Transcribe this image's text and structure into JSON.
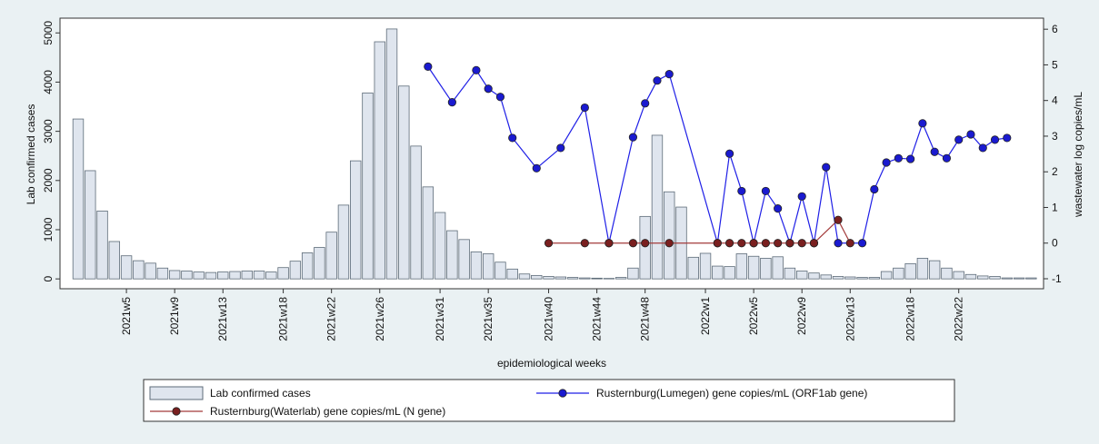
{
  "chart_data": {
    "type": "bar",
    "x_label": "epidemiological weeks",
    "y_label": "Lab confirmed cases",
    "y2_label": "wastewater log copies/mL",
    "categories": [
      null,
      null,
      null,
      null,
      "2021w5",
      null,
      null,
      null,
      "2021w9",
      null,
      null,
      null,
      "2021w13",
      null,
      null,
      null,
      null,
      "2021w18",
      null,
      null,
      null,
      "2021w22",
      null,
      null,
      null,
      "2021w26",
      null,
      null,
      null,
      null,
      "2021w31",
      null,
      null,
      null,
      "2021w35",
      null,
      null,
      null,
      null,
      "2021w40",
      null,
      null,
      null,
      "2021w44",
      null,
      null,
      null,
      "2021w48",
      null,
      null,
      null,
      null,
      "2022w1",
      null,
      null,
      null,
      "2022w5",
      null,
      null,
      null,
      "2022w9",
      null,
      null,
      null,
      "2022w13",
      null,
      null,
      null,
      null,
      "2022w18",
      null,
      null,
      null,
      "2022w22",
      null,
      null,
      null,
      null,
      null,
      null
    ],
    "ylim": [
      -200,
      5300
    ],
    "yticks": [
      0,
      1000,
      2000,
      3000,
      4000,
      5000
    ],
    "y2lim": [
      -1.28,
      6.31
    ],
    "y2ticks": [
      -1,
      0,
      1,
      2,
      3,
      4,
      5,
      6
    ],
    "series": [
      {
        "name": "Lab confirmed cases",
        "type": "bar",
        "color": "#dfe5ee",
        "axis": "y",
        "values": [
          3250,
          2200,
          1380,
          760,
          470,
          370,
          320,
          220,
          170,
          160,
          140,
          130,
          140,
          150,
          160,
          160,
          140,
          230,
          360,
          530,
          640,
          950,
          1500,
          2400,
          3780,
          4820,
          5080,
          3920,
          2700,
          1870,
          1350,
          980,
          800,
          550,
          510,
          340,
          200,
          100,
          70,
          50,
          40,
          30,
          20,
          15,
          10,
          30,
          220,
          1270,
          2920,
          1770,
          1460,
          440,
          520,
          260,
          250,
          510,
          460,
          420,
          450,
          220,
          160,
          120,
          80,
          50,
          40,
          30,
          30,
          150,
          220,
          310,
          420,
          370,
          220,
          150,
          90,
          60,
          50,
          20,
          20,
          20
        ]
      },
      {
        "name": "Rusternburg(Lumegen) gene copies/mL (ORF1ab gene)",
        "type": "line",
        "color": "#1f1fe6",
        "axis": "y2",
        "values": [
          null,
          null,
          null,
          null,
          null,
          null,
          null,
          null,
          null,
          null,
          null,
          null,
          null,
          null,
          null,
          null,
          null,
          null,
          null,
          null,
          null,
          null,
          null,
          null,
          null,
          null,
          null,
          null,
          null,
          4.95,
          null,
          3.95,
          null,
          4.85,
          4.33,
          4.1,
          2.95,
          null,
          2.1,
          null,
          2.67,
          null,
          3.8,
          null,
          0,
          null,
          2.97,
          3.92,
          4.56,
          4.74,
          null,
          null,
          null,
          0,
          2.51,
          1.46,
          0,
          1.46,
          0.97,
          0,
          1.31,
          0,
          2.13,
          0,
          null,
          0,
          1.51,
          2.26,
          2.38,
          2.36,
          3.36,
          2.56,
          2.38,
          2.9,
          3.05,
          2.67,
          2.9,
          2.95,
          null,
          null
        ]
      },
      {
        "name": "Rusternburg(Waterlab) gene copies/mL (N gene)",
        "type": "line",
        "color": "#a33a3a",
        "axis": "y2",
        "values": [
          null,
          null,
          null,
          null,
          null,
          null,
          null,
          null,
          null,
          null,
          null,
          null,
          null,
          null,
          null,
          null,
          null,
          null,
          null,
          null,
          null,
          null,
          null,
          null,
          null,
          null,
          null,
          null,
          null,
          null,
          null,
          null,
          null,
          null,
          null,
          null,
          null,
          null,
          null,
          0,
          null,
          null,
          0,
          null,
          0,
          null,
          0,
          0,
          null,
          0,
          null,
          null,
          null,
          0,
          0,
          0,
          0,
          0,
          0,
          0,
          0,
          0,
          null,
          0.65,
          0,
          null,
          null,
          null,
          null,
          null,
          null,
          null,
          null,
          null,
          null,
          null,
          null,
          null,
          null,
          null
        ]
      }
    ]
  }
}
